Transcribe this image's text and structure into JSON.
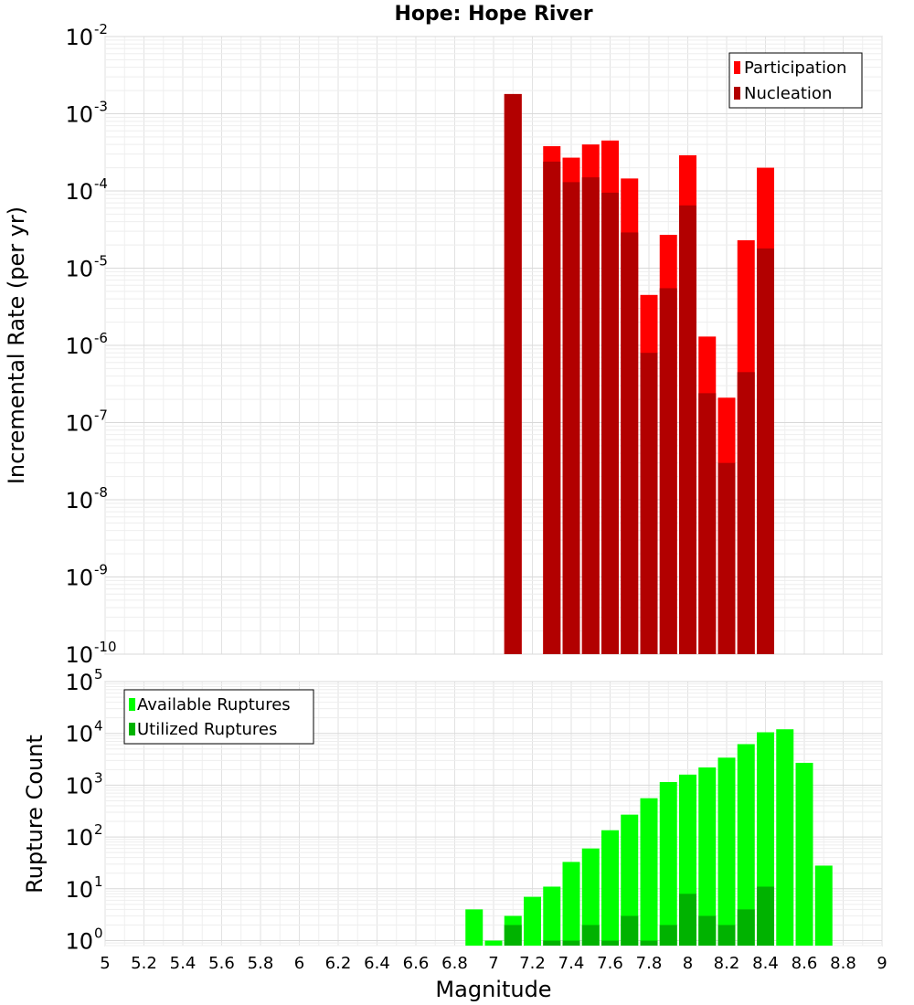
{
  "chart_data": [
    {
      "type": "bar",
      "title": "Hope: Hope River",
      "xlabel": "",
      "ylabel": "Incremental Rate (per yr)",
      "yscale": "log",
      "xlim": [
        5,
        9
      ],
      "ylim": [
        1e-10,
        0.01
      ],
      "grid": true,
      "legend_position": "top-right",
      "x": [
        7.1,
        7.3,
        7.4,
        7.5,
        7.6,
        7.7,
        7.8,
        7.9,
        8.0,
        8.1,
        8.2,
        8.3,
        8.4
      ],
      "series": [
        {
          "name": "Participation",
          "color": "#ff0000",
          "values": [
            0.0018,
            0.00038,
            0.00027,
            0.0004,
            0.00045,
            0.000145,
            4.5e-06,
            2.7e-05,
            0.00029,
            1.3e-06,
            2.1e-07,
            2.3e-05,
            0.0002
          ]
        },
        {
          "name": "Nucleation",
          "color": "#b20000",
          "values": [
            0.0018,
            0.00024,
            0.00013,
            0.00015,
            9.5e-05,
            2.9e-05,
            8e-07,
            5.5e-06,
            6.5e-05,
            2.4e-07,
            3e-08,
            4.5e-07,
            1.8e-05
          ]
        }
      ],
      "yticks": [
        {
          "base": "10",
          "exp": "-10"
        },
        {
          "base": "10",
          "exp": "-9"
        },
        {
          "base": "10",
          "exp": "-8"
        },
        {
          "base": "10",
          "exp": "-7"
        },
        {
          "base": "10",
          "exp": "-6"
        },
        {
          "base": "10",
          "exp": "-5"
        },
        {
          "base": "10",
          "exp": "-4"
        },
        {
          "base": "10",
          "exp": "-3"
        },
        {
          "base": "10",
          "exp": "-2"
        }
      ]
    },
    {
      "type": "bar",
      "title": "",
      "xlabel": "Magnitude",
      "ylabel": "Rupture Count",
      "yscale": "log",
      "xlim": [
        5,
        9
      ],
      "ylim": [
        0.8,
        100000.0
      ],
      "grid": true,
      "legend_position": "top-left",
      "x": [
        6.9,
        7.0,
        7.1,
        7.2,
        7.3,
        7.4,
        7.5,
        7.6,
        7.7,
        7.8,
        7.9,
        8.0,
        8.1,
        8.2,
        8.3,
        8.4,
        8.5,
        8.6,
        8.7
      ],
      "series": [
        {
          "name": "Available Ruptures",
          "color": "#00ff00",
          "values": [
            4,
            1,
            3,
            7,
            11,
            33,
            60,
            135,
            270,
            560,
            1150,
            1600,
            2200,
            3400,
            6200,
            10500,
            12000,
            2700,
            28
          ]
        },
        {
          "name": "Utilized Ruptures",
          "color": "#00b200",
          "values": [
            null,
            null,
            2,
            null,
            1,
            1,
            2,
            1,
            3,
            1,
            2,
            8,
            3,
            2,
            4,
            11,
            null,
            null,
            null
          ]
        }
      ],
      "yticks": [
        {
          "base": "10",
          "exp": "0"
        },
        {
          "base": "10",
          "exp": "1"
        },
        {
          "base": "10",
          "exp": "2"
        },
        {
          "base": "10",
          "exp": "3"
        },
        {
          "base": "10",
          "exp": "4"
        },
        {
          "base": "10",
          "exp": "5"
        }
      ],
      "xticks": [
        "5",
        "5.2",
        "5.4",
        "5.6",
        "5.8",
        "6",
        "6.2",
        "6.4",
        "6.6",
        "6.8",
        "7",
        "7.2",
        "7.4",
        "7.6",
        "7.8",
        "8",
        "8.2",
        "8.4",
        "8.6",
        "8.8",
        "9"
      ]
    }
  ]
}
